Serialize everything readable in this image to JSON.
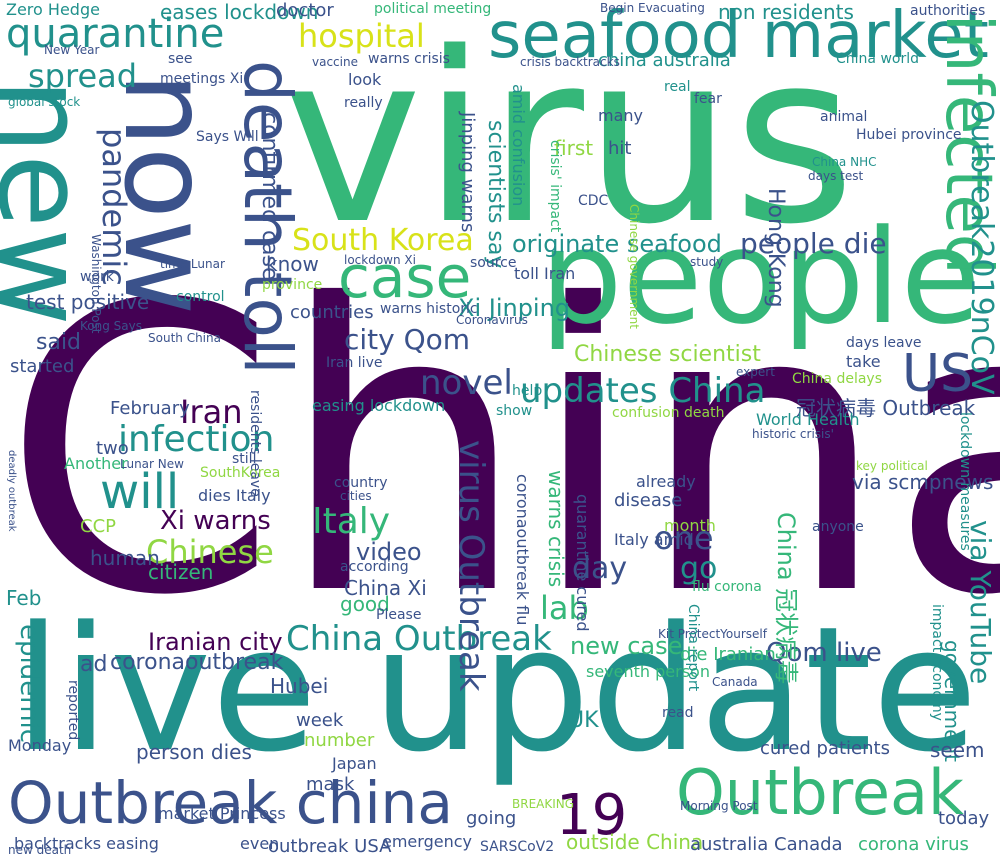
{
  "palette": {
    "purple": "#440154",
    "indigo": "#3b528b",
    "teal": "#21918c",
    "green": "#35b779",
    "lime": "#90d743",
    "yellow": "#d8e219"
  },
  "words": [
    {
      "text": "China",
      "c": "purple",
      "v": false
    },
    {
      "text": "virus",
      "c": "green",
      "v": false
    },
    {
      "text": "people",
      "c": "green",
      "v": false
    },
    {
      "text": "live update",
      "c": "teal",
      "v": false
    },
    {
      "text": "new",
      "c": "teal",
      "v": true
    },
    {
      "text": "now",
      "c": "indigo",
      "v": true
    },
    {
      "text": "death toll",
      "c": "indigo",
      "v": true
    },
    {
      "text": "seafood market",
      "c": "teal",
      "v": false
    },
    {
      "text": "infected",
      "c": "green",
      "v": true
    },
    {
      "text": "Outbreak china",
      "c": "indigo",
      "v": false
    },
    {
      "text": "Outbreak",
      "c": "green",
      "v": false
    },
    {
      "text": "19",
      "c": "purple",
      "v": false
    },
    {
      "text": "quarantine",
      "c": "teal",
      "v": false
    },
    {
      "text": "case",
      "c": "green",
      "v": false
    },
    {
      "text": "hospital",
      "c": "yellow",
      "v": false
    },
    {
      "text": "spread",
      "c": "teal",
      "v": false
    },
    {
      "text": "will",
      "c": "teal",
      "v": false
    },
    {
      "text": "pandemic",
      "c": "indigo",
      "v": true
    },
    {
      "text": "US",
      "c": "indigo",
      "v": false
    },
    {
      "text": "Outbreak2019nCoV",
      "c": "teal",
      "v": true
    },
    {
      "text": "South Korea",
      "c": "yellow",
      "v": false
    },
    {
      "text": "originate seafood",
      "c": "teal",
      "v": false
    },
    {
      "text": "people die",
      "c": "indigo",
      "v": false
    },
    {
      "text": "updates China",
      "c": "teal",
      "v": false
    },
    {
      "text": "novel",
      "c": "indigo",
      "v": false
    },
    {
      "text": "infection",
      "c": "teal",
      "v": false
    },
    {
      "text": "Iran",
      "c": "purple",
      "v": false
    },
    {
      "text": "Italy",
      "c": "green",
      "v": false
    },
    {
      "text": "Chinese",
      "c": "lime",
      "v": false
    },
    {
      "text": "Xi warns",
      "c": "purple",
      "v": false
    },
    {
      "text": "China Outbreak",
      "c": "teal",
      "v": false
    },
    {
      "text": "city Qom",
      "c": "indigo",
      "v": false
    },
    {
      "text": "Chinese scientist",
      "c": "lime",
      "v": false
    },
    {
      "text": "virus Outbreak",
      "c": "indigo",
      "v": true
    },
    {
      "text": "Hong Kong",
      "c": "indigo",
      "v": true
    },
    {
      "text": "Xi Jinping",
      "c": "teal",
      "v": false
    },
    {
      "text": "Iranian city",
      "c": "purple",
      "v": false
    },
    {
      "text": "Qom live",
      "c": "indigo",
      "v": false
    },
    {
      "text": "epidemic",
      "c": "teal",
      "v": true
    },
    {
      "text": "coronaoutbreak",
      "c": "indigo",
      "v": false
    },
    {
      "text": "ad",
      "c": "indigo",
      "v": false
    },
    {
      "text": "new case",
      "c": "green",
      "v": false
    },
    {
      "text": "lab",
      "c": "green",
      "v": false
    },
    {
      "text": "day",
      "c": "indigo",
      "v": false
    },
    {
      "text": "go",
      "c": "teal",
      "v": false
    },
    {
      "text": "one",
      "c": "indigo",
      "v": false
    },
    {
      "text": "video",
      "c": "indigo",
      "v": false
    },
    {
      "text": "China Xi",
      "c": "indigo",
      "v": false
    },
    {
      "text": "good",
      "c": "green",
      "v": false
    },
    {
      "text": "via YouTube",
      "c": "teal",
      "v": true
    },
    {
      "text": "China 冠状病毒",
      "c": "green",
      "v": true
    },
    {
      "text": "冠状病毒 Outbreak",
      "c": "indigo",
      "v": false
    },
    {
      "text": "via scmpnews",
      "c": "indigo",
      "v": false
    },
    {
      "text": "World Health",
      "c": "teal",
      "v": false
    },
    {
      "text": "government",
      "c": "teal",
      "v": true
    },
    {
      "text": "Iran live",
      "c": "indigo",
      "v": false
    },
    {
      "text": "confirmed case",
      "c": "indigo",
      "v": true
    },
    {
      "text": "scientists say",
      "c": "teal",
      "v": true
    },
    {
      "text": "warns crisis",
      "c": "green",
      "v": true
    },
    {
      "text": "Jinping warns",
      "c": "indigo",
      "v": true
    },
    {
      "text": "test positive",
      "c": "indigo",
      "v": false
    },
    {
      "text": "said",
      "c": "indigo",
      "v": false
    },
    {
      "text": "started",
      "c": "indigo",
      "v": false
    },
    {
      "text": "know",
      "c": "indigo",
      "v": false
    },
    {
      "text": "countries",
      "c": "indigo",
      "v": false
    },
    {
      "text": "easing lockdown",
      "c": "teal",
      "v": false
    },
    {
      "text": "February",
      "c": "indigo",
      "v": false
    },
    {
      "text": "two",
      "c": "indigo",
      "v": false
    },
    {
      "text": "Another",
      "c": "green",
      "v": false
    },
    {
      "text": "citizen",
      "c": "green",
      "v": false
    },
    {
      "text": "human",
      "c": "indigo",
      "v": false
    },
    {
      "text": "CCP",
      "c": "lime",
      "v": false
    },
    {
      "text": "Feb",
      "c": "teal",
      "v": false
    },
    {
      "text": "Hubei",
      "c": "indigo",
      "v": false
    },
    {
      "text": "week",
      "c": "indigo",
      "v": false
    },
    {
      "text": "mask",
      "c": "indigo",
      "v": false
    },
    {
      "text": "number",
      "c": "lime",
      "v": false
    },
    {
      "text": "Japan",
      "c": "indigo",
      "v": false
    },
    {
      "text": "Monday",
      "c": "indigo",
      "v": false
    },
    {
      "text": "person dies",
      "c": "indigo",
      "v": false
    },
    {
      "text": "market Princess",
      "c": "indigo",
      "v": false
    },
    {
      "text": "going",
      "c": "indigo",
      "v": false
    },
    {
      "text": "outside China",
      "c": "lime",
      "v": false
    },
    {
      "text": "australia Canada",
      "c": "indigo",
      "v": false
    },
    {
      "text": "corona virus",
      "c": "green",
      "v": false
    },
    {
      "text": "today",
      "c": "indigo",
      "v": false
    },
    {
      "text": "seem",
      "c": "indigo",
      "v": false
    },
    {
      "text": "cured patients",
      "c": "indigo",
      "v": false
    },
    {
      "text": "die Iranian",
      "c": "green",
      "v": false
    },
    {
      "text": "seventh person",
      "c": "green",
      "v": false
    },
    {
      "text": "Italy amid",
      "c": "indigo",
      "v": false
    },
    {
      "text": "disease",
      "c": "indigo",
      "v": false
    },
    {
      "text": "month",
      "c": "lime",
      "v": false
    },
    {
      "text": "UK",
      "c": "teal",
      "v": false
    },
    {
      "text": "SARSCoV2",
      "c": "indigo",
      "v": false
    },
    {
      "text": "emergency",
      "c": "indigo",
      "v": false
    },
    {
      "text": "outbreak USA",
      "c": "indigo",
      "v": false
    },
    {
      "text": "backtracks easing",
      "c": "indigo",
      "v": false
    },
    {
      "text": "even",
      "c": "indigo",
      "v": false
    },
    {
      "text": "china australia",
      "c": "teal",
      "v": false
    },
    {
      "text": "Zero Hedge",
      "c": "teal",
      "v": false
    },
    {
      "text": "eases lockdown",
      "c": "teal",
      "v": false
    },
    {
      "text": "doctor",
      "c": "indigo",
      "v": false
    },
    {
      "text": "political meeting",
      "c": "green",
      "v": false
    },
    {
      "text": "non residents",
      "c": "teal",
      "v": false
    },
    {
      "text": "Begin Evacuating",
      "c": "indigo",
      "v": false
    },
    {
      "text": "crisis backtracks",
      "c": "indigo",
      "v": false
    },
    {
      "text": "meetings Xi",
      "c": "indigo",
      "v": false
    },
    {
      "text": "Says Will",
      "c": "indigo",
      "v": false
    },
    {
      "text": "warns crisis",
      "c": "indigo",
      "v": false
    },
    {
      "text": "vaccine",
      "c": "indigo",
      "v": false
    },
    {
      "text": "look",
      "c": "indigo",
      "v": false
    },
    {
      "text": "really",
      "c": "indigo",
      "v": false
    },
    {
      "text": "many",
      "c": "indigo",
      "v": false
    },
    {
      "text": "hit",
      "c": "indigo",
      "v": false
    },
    {
      "text": "first",
      "c": "lime",
      "v": false
    },
    {
      "text": "CDC",
      "c": "indigo",
      "v": false
    },
    {
      "text": "real",
      "c": "teal",
      "v": false
    },
    {
      "text": "fear",
      "c": "indigo",
      "v": false
    },
    {
      "text": "China world",
      "c": "teal",
      "v": false
    },
    {
      "text": "Hubei province",
      "c": "indigo",
      "v": false
    },
    {
      "text": "China NHC",
      "c": "teal",
      "v": false
    },
    {
      "text": "days test",
      "c": "indigo",
      "v": false
    },
    {
      "text": "animal",
      "c": "indigo",
      "v": false
    },
    {
      "text": "authorities",
      "c": "indigo",
      "v": false
    },
    {
      "text": "New Year",
      "c": "indigo",
      "v": false
    },
    {
      "text": "see",
      "c": "indigo",
      "v": false
    },
    {
      "text": "work",
      "c": "indigo",
      "v": false
    },
    {
      "text": "Kong Says",
      "c": "indigo",
      "v": false
    },
    {
      "text": "control",
      "c": "teal",
      "v": false
    },
    {
      "text": "South China",
      "c": "indigo",
      "v": false
    },
    {
      "text": "time Lunar",
      "c": "indigo",
      "v": false
    },
    {
      "text": "lockdown Xi",
      "c": "indigo",
      "v": false
    },
    {
      "text": "toll Iran",
      "c": "indigo",
      "v": false
    },
    {
      "text": "source",
      "c": "indigo",
      "v": false
    },
    {
      "text": "province",
      "c": "lime",
      "v": false
    },
    {
      "text": "warns historic",
      "c": "indigo",
      "v": false
    },
    {
      "text": "Coronavirus",
      "c": "indigo",
      "v": false
    },
    {
      "text": "confusion death",
      "c": "lime",
      "v": false
    },
    {
      "text": "help",
      "c": "teal",
      "v": false
    },
    {
      "text": "show",
      "c": "teal",
      "v": false
    },
    {
      "text": "already",
      "c": "indigo",
      "v": false
    },
    {
      "text": "take",
      "c": "indigo",
      "v": false
    },
    {
      "text": "expert",
      "c": "indigo",
      "v": false
    },
    {
      "text": "Lunar New",
      "c": "indigo",
      "v": false
    },
    {
      "text": "dies Italy",
      "c": "indigo",
      "v": false
    },
    {
      "text": "SouthKorea",
      "c": "lime",
      "v": false
    },
    {
      "text": "still",
      "c": "indigo",
      "v": false
    },
    {
      "text": "key political",
      "c": "lime",
      "v": false
    },
    {
      "text": "historic crisis'",
      "c": "indigo",
      "v": false
    },
    {
      "text": "days leave",
      "c": "indigo",
      "v": false
    },
    {
      "text": "anyone",
      "c": "indigo",
      "v": false
    },
    {
      "text": "China delays",
      "c": "lime",
      "v": false
    },
    {
      "text": "Kit ProtectYourself",
      "c": "indigo",
      "v": false
    },
    {
      "text": "new death",
      "c": "indigo",
      "v": false
    },
    {
      "text": "global stock",
      "c": "teal",
      "v": false
    },
    {
      "text": "Morning Post",
      "c": "indigo",
      "v": false
    },
    {
      "text": "BREAKING",
      "c": "lime",
      "v": false
    },
    {
      "text": "read",
      "c": "indigo",
      "v": false
    },
    {
      "text": "Canada",
      "c": "indigo",
      "v": false
    },
    {
      "text": "country",
      "c": "indigo",
      "v": false
    },
    {
      "text": "according",
      "c": "indigo",
      "v": false
    },
    {
      "text": "Please",
      "c": "indigo",
      "v": false
    },
    {
      "text": "cities",
      "c": "indigo",
      "v": false
    },
    {
      "text": "study",
      "c": "indigo",
      "v": false
    },
    {
      "text": "flu corona",
      "c": "green",
      "v": false
    },
    {
      "text": "quarantine cured",
      "c": "indigo",
      "v": true
    },
    {
      "text": "coronaoutbreak flu",
      "c": "indigo",
      "v": true
    },
    {
      "text": "amid confusion",
      "c": "teal",
      "v": true
    },
    {
      "text": "residents leave",
      "c": "indigo",
      "v": true
    },
    {
      "text": "lockdown measures",
      "c": "teal",
      "v": true
    },
    {
      "text": "impact economy",
      "c": "teal",
      "v": true
    },
    {
      "text": "Washington Post",
      "c": "indigo",
      "v": true
    },
    {
      "text": "reported",
      "c": "indigo",
      "v": true
    },
    {
      "text": "crisis' impact",
      "c": "green",
      "v": true
    },
    {
      "text": "China report",
      "c": "teal",
      "v": true
    },
    {
      "text": "Chinese government",
      "c": "lime",
      "v": true
    },
    {
      "text": "deadly outbreak",
      "c": "indigo",
      "v": true
    }
  ]
}
